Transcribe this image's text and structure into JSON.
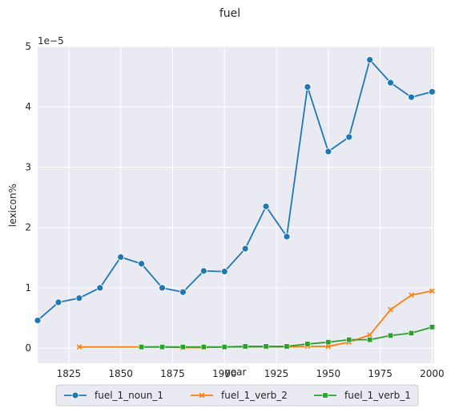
{
  "chart_data": {
    "type": "line",
    "title": "fuel",
    "xlabel": "year",
    "ylabel": "lexicon%",
    "y_offset_label": "1e−5",
    "xlim": [
      1810,
      2001
    ],
    "ylim": [
      -0.25,
      5.0
    ],
    "x_ticks": [
      1825,
      1850,
      1875,
      1900,
      1925,
      1950,
      1975,
      2000
    ],
    "y_ticks": [
      0,
      1,
      2,
      3,
      4,
      5
    ],
    "grid": true,
    "legend_position": "bottom-center",
    "series": [
      {
        "name": "fuel_1_noun_1",
        "color": "#1f77b4",
        "marker": "circle",
        "x": [
          1810,
          1820,
          1830,
          1840,
          1850,
          1860,
          1870,
          1880,
          1890,
          1900,
          1910,
          1920,
          1930,
          1940,
          1950,
          1960,
          1970,
          1980,
          1990,
          2000
        ],
        "y": [
          0.46,
          0.76,
          0.83,
          1.0,
          1.51,
          1.4,
          1.0,
          0.93,
          1.28,
          1.27,
          1.65,
          2.35,
          1.85,
          4.33,
          3.26,
          3.5,
          4.78,
          4.4,
          4.16,
          4.25
        ]
      },
      {
        "name": "fuel_1_verb_2",
        "color": "#ff7f0e",
        "marker": "x",
        "x": [
          1830,
          1860,
          1870,
          1880,
          1890,
          1900,
          1910,
          1920,
          1930,
          1940,
          1950,
          1960,
          1970,
          1980,
          1990,
          2000
        ],
        "y": [
          0.02,
          0.02,
          0.02,
          0.01,
          0.01,
          0.02,
          0.02,
          0.02,
          0.02,
          0.03,
          0.03,
          0.1,
          0.22,
          0.64,
          0.88,
          0.95
        ]
      },
      {
        "name": "fuel_1_verb_1",
        "color": "#2ca02c",
        "marker": "square",
        "x": [
          1860,
          1870,
          1880,
          1890,
          1900,
          1910,
          1920,
          1930,
          1940,
          1950,
          1960,
          1970,
          1980,
          1990,
          2000
        ],
        "y": [
          0.02,
          0.02,
          0.02,
          0.02,
          0.02,
          0.03,
          0.03,
          0.03,
          0.07,
          0.1,
          0.14,
          0.14,
          0.21,
          0.25,
          0.35
        ]
      }
    ]
  }
}
